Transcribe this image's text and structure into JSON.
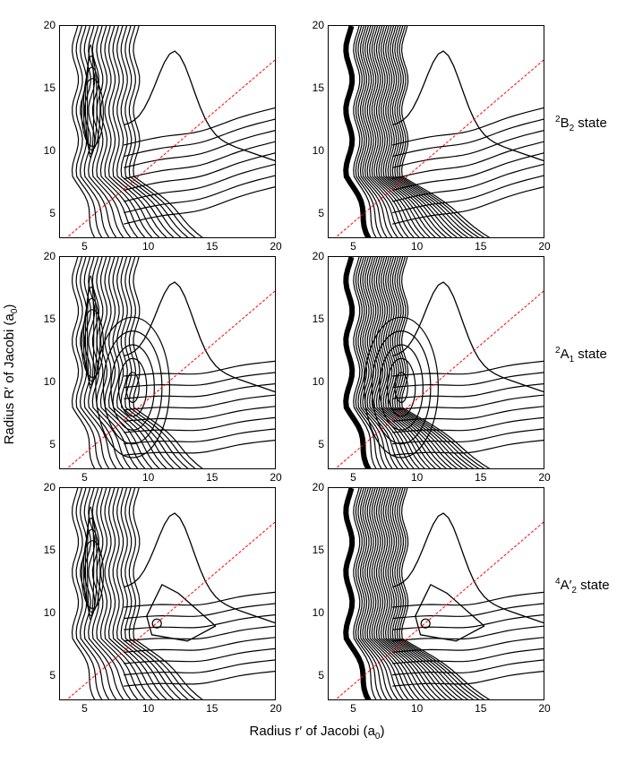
{
  "chart_data": {
    "type": "contour",
    "layout": "3 rows x 2 columns of contour plots",
    "x_axis": {
      "label": "Radius r′ of Jacobi",
      "unit": "a",
      "unit_sub": "0",
      "range": [
        3,
        20
      ],
      "ticks": [
        5,
        10,
        15,
        20
      ]
    },
    "y_axis": {
      "label": "Radius R′ of Jacobi",
      "unit": "a",
      "unit_sub": "0",
      "range": [
        3,
        20
      ],
      "ticks": [
        5,
        10,
        15,
        20
      ]
    },
    "diagonal_line": {
      "style": "dashed",
      "color": "#ff0000",
      "points": [
        [
          3.4,
          3
        ],
        [
          20,
          17.4
        ]
      ]
    },
    "rows": [
      {
        "state_sup": "2",
        "state_main": "B",
        "state_sub": "2",
        "state_suffix": " state",
        "minimum_marker": null
      },
      {
        "state_sup": "2",
        "state_main": "A",
        "state_sub": "1",
        "state_suffix": " state",
        "minimum_marker": null
      },
      {
        "state_sup": "4",
        "state_main": "A′",
        "state_sub": "2",
        "state_suffix": " state",
        "minimum_marker": [
          10.6,
          9.2
        ]
      }
    ]
  },
  "colors": {
    "contour": "#000000",
    "diagonal": "#ff0000",
    "axes": "#000000"
  }
}
